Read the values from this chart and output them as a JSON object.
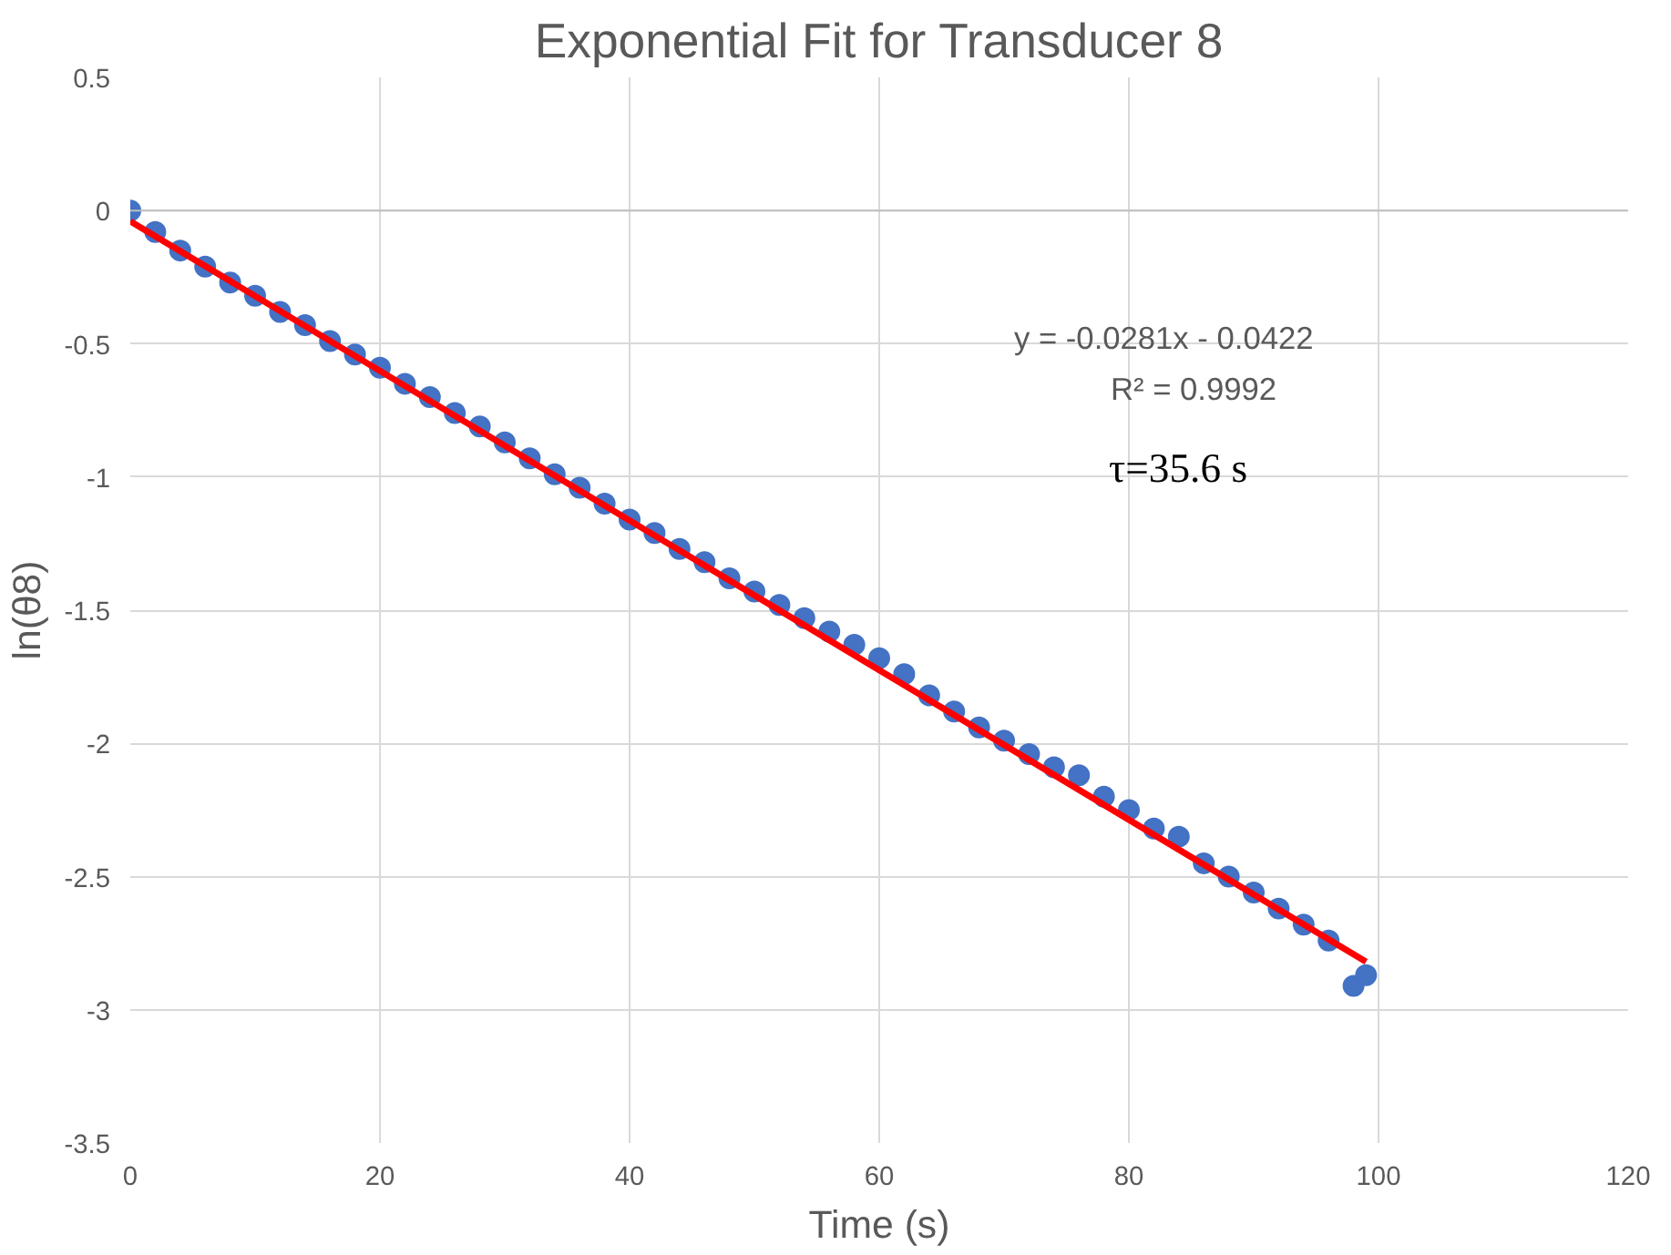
{
  "chart_data": {
    "type": "scatter",
    "title": "Exponential Fit for Transducer 8",
    "xlabel": "Time (s)",
    "ylabel": "ln(θ8)",
    "xlim": [
      0,
      120
    ],
    "xticks": [
      0,
      20,
      40,
      60,
      80,
      100,
      120
    ],
    "ylim": [
      -3.5,
      0.5
    ],
    "yticks": [
      -3.5,
      -3,
      -2.5,
      -2,
      -1.5,
      -1,
      -0.5,
      0,
      0.5
    ],
    "grid": true,
    "annotations": [
      "y = -0.0281x - 0.0422",
      "R² = 0.9992",
      "τ=35.6 s"
    ],
    "series": [
      {
        "marker": "circle",
        "color": "#4472c4",
        "x": [
          0,
          2,
          4,
          6,
          8,
          10,
          12,
          14,
          16,
          18,
          20,
          22,
          24,
          26,
          28,
          30,
          32,
          34,
          36,
          38,
          40,
          42,
          44,
          46,
          48,
          50,
          52,
          54,
          56,
          58,
          60,
          62,
          64,
          66,
          68,
          70,
          72,
          74,
          76,
          78,
          80,
          82,
          84,
          86,
          88,
          90,
          92,
          94,
          96,
          98,
          99
        ],
        "values": [
          0,
          -0.08,
          -0.15,
          -0.21,
          -0.27,
          -0.32,
          -0.38,
          -0.43,
          -0.49,
          -0.54,
          -0.59,
          -0.65,
          -0.7,
          -0.76,
          -0.81,
          -0.87,
          -0.93,
          -0.99,
          -1.04,
          -1.1,
          -1.16,
          -1.21,
          -1.27,
          -1.32,
          -1.38,
          -1.43,
          -1.48,
          -1.53,
          -1.58,
          -1.63,
          -1.68,
          -1.74,
          -1.82,
          -1.88,
          -1.94,
          -1.99,
          -2.04,
          -2.09,
          -2.12,
          -2.2,
          -2.25,
          -2.32,
          -2.35,
          -2.45,
          -2.5,
          -2.56,
          -2.62,
          -2.68,
          -2.74,
          -2.91,
          -2.87
        ]
      },
      {
        "type": "line",
        "color": "#ff0000",
        "x": [
          0,
          99
        ],
        "values": [
          -0.04,
          -2.82
        ]
      }
    ]
  }
}
